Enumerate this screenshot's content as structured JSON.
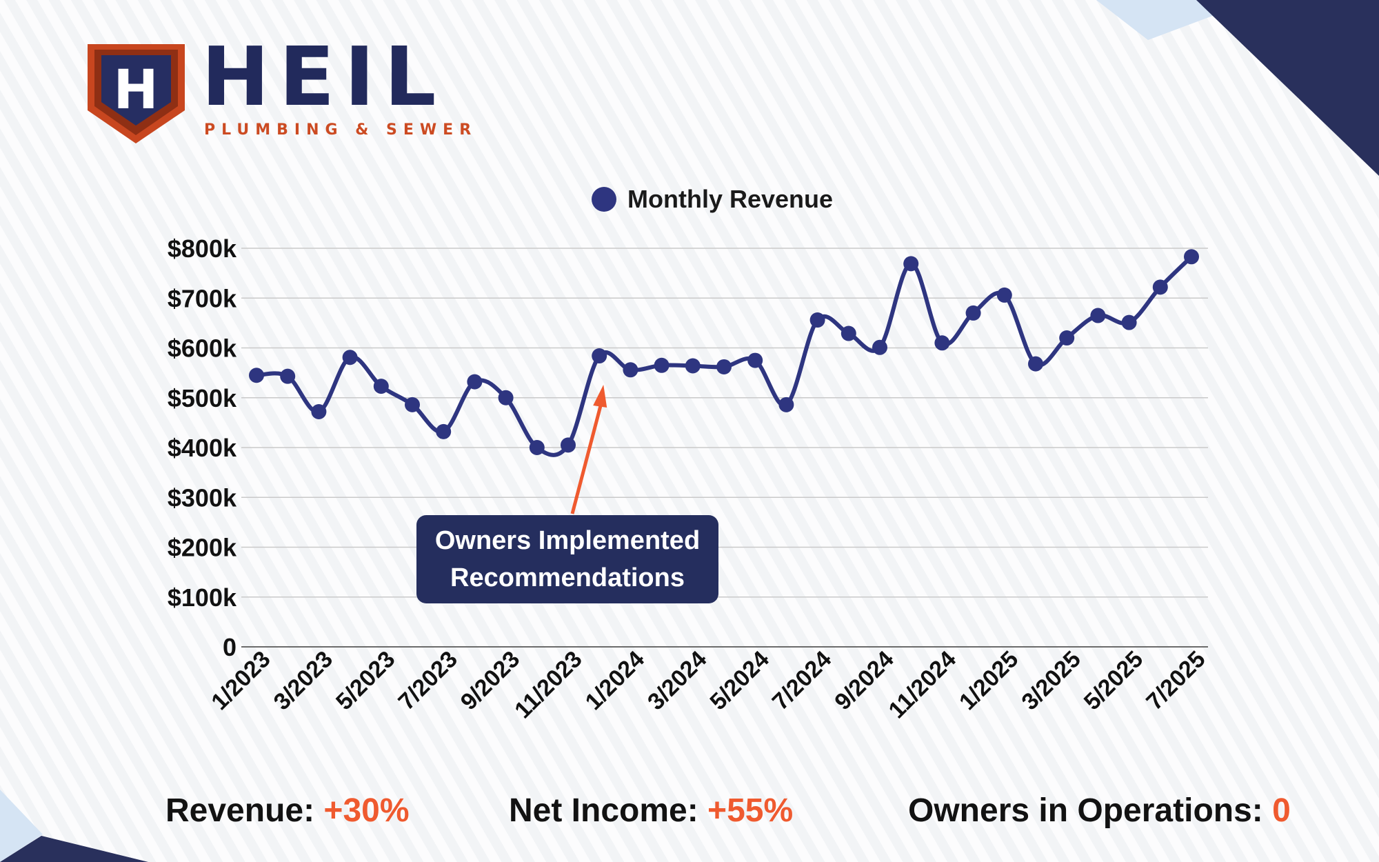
{
  "brand": {
    "logo_letter": "H",
    "name": "HEIL",
    "tagline": "PLUMBING & SEWER"
  },
  "colors": {
    "navy": "#222a5c",
    "series": "#2e3580",
    "accent": "#ef5a2f",
    "logo_orange": "#cc4b22"
  },
  "chart_data": {
    "type": "line",
    "legend": {
      "label": "Monthly Revenue",
      "position": "top-center"
    },
    "ylim": [
      0,
      800000
    ],
    "yticks": [
      {
        "value": 0,
        "label": "0"
      },
      {
        "value": 100000,
        "label": "$100k"
      },
      {
        "value": 200000,
        "label": "$200k"
      },
      {
        "value": 300000,
        "label": "$300k"
      },
      {
        "value": 400000,
        "label": "$400k"
      },
      {
        "value": 500000,
        "label": "$500k"
      },
      {
        "value": 600000,
        "label": "$600k"
      },
      {
        "value": 700000,
        "label": "$700k"
      },
      {
        "value": 800000,
        "label": "$800k"
      }
    ],
    "grid": true,
    "x": [
      "1/2023",
      "2/2023",
      "3/2023",
      "4/2023",
      "5/2023",
      "6/2023",
      "7/2023",
      "8/2023",
      "9/2023",
      "10/2023",
      "11/2023",
      "12/2023",
      "1/2024",
      "2/2024",
      "3/2024",
      "4/2024",
      "5/2024",
      "6/2024",
      "7/2024",
      "8/2024",
      "9/2024",
      "10/2024",
      "11/2024",
      "12/2024",
      "1/2025",
      "2/2025",
      "3/2025",
      "4/2025",
      "5/2025",
      "6/2025",
      "7/2025"
    ],
    "xtick_labels": [
      "1/2023",
      "3/2023",
      "5/2023",
      "7/2023",
      "9/2023",
      "11/2023",
      "1/2024",
      "3/2024",
      "5/2024",
      "7/2024",
      "9/2024",
      "11/2024",
      "1/2025",
      "3/2025",
      "5/2025",
      "7/2025"
    ],
    "series": [
      {
        "name": "Monthly Revenue",
        "values": [
          545000,
          543000,
          472000,
          581000,
          523000,
          486000,
          432000,
          532000,
          500000,
          400000,
          405000,
          584000,
          556000,
          565000,
          564000,
          562000,
          575000,
          486000,
          656000,
          629000,
          601000,
          769000,
          610000,
          670000,
          706000,
          568000,
          620000,
          665000,
          651000,
          722000,
          783000
        ]
      }
    ],
    "annotations": [
      {
        "text_lines": [
          "Owners Implemented",
          "Recommendations"
        ],
        "points_to": "12/2023"
      }
    ]
  },
  "stats": [
    {
      "label": "Revenue: ",
      "value": "+30%"
    },
    {
      "label": "Net Income: ",
      "value": "+55%"
    },
    {
      "label": "Owners in Operations: ",
      "value": "0"
    }
  ]
}
